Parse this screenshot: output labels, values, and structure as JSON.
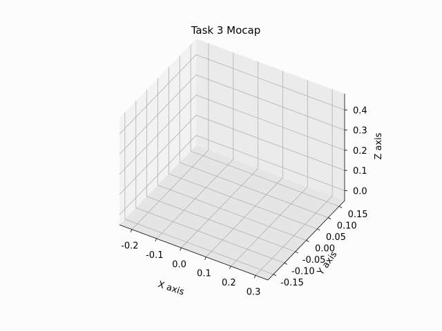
{
  "chart_data": {
    "type": "scatter",
    "title": "Task 3 Mocap",
    "xlabel": "X axis",
    "ylabel": "Y axis",
    "zlabel": "Z axis",
    "xlim": [
      -0.25,
      0.35
    ],
    "ylim": [
      -0.175,
      0.175
    ],
    "zlim": [
      -0.05,
      0.48
    ],
    "xticks": [
      "-0.2",
      "-0.1",
      "0.0",
      "0.1",
      "0.2",
      "0.3"
    ],
    "yticks": [
      "-0.15",
      "-0.10",
      "-0.05",
      "0.00",
      "0.05",
      "0.10",
      "0.15"
    ],
    "zticks": [
      "0.0",
      "0.1",
      "0.2",
      "0.3",
      "0.4"
    ],
    "grid": true,
    "series": []
  }
}
